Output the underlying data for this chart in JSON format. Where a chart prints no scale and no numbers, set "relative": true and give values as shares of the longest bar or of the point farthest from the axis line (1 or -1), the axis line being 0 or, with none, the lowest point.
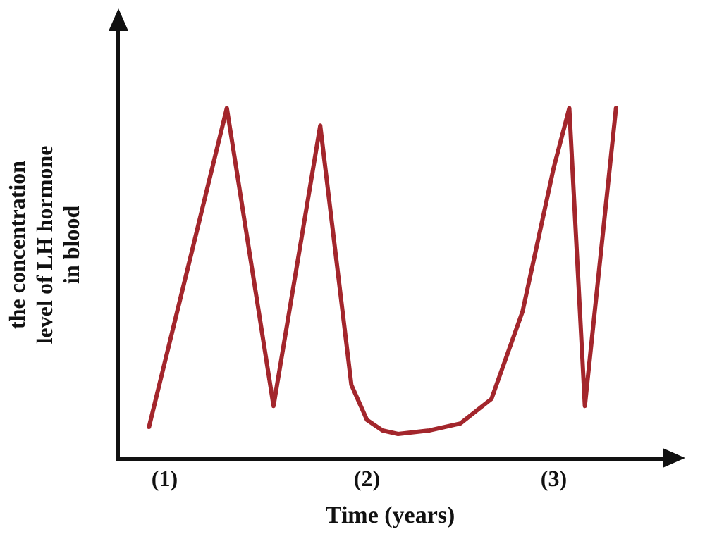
{
  "chart_data": {
    "type": "line",
    "relative": true,
    "xlabel": "Time (years)",
    "ylabel": "the concentration\nlevel of LH hormone\nin blood",
    "categories": [
      null,
      null,
      null,
      "(1)",
      null,
      null,
      null,
      null,
      null,
      null,
      null,
      null,
      null,
      null,
      null,
      null,
      "(2)",
      null,
      null,
      null,
      null,
      null,
      null,
      null,
      null,
      null,
      null,
      null,
      "(3)",
      null,
      null,
      null,
      null,
      null,
      null,
      null
    ],
    "series": [
      {
        "color": "#a3262c",
        "values": [
          null,
          null,
          0.09,
          null,
          null,
          null,
          null,
          1.0,
          null,
          null,
          0.15,
          null,
          null,
          0.95,
          null,
          0.21,
          0.11,
          0.08,
          0.07,
          null,
          0.08,
          null,
          0.1,
          null,
          0.17,
          null,
          0.42,
          null,
          0.83,
          1.0,
          0.15,
          null,
          1.0,
          null,
          null,
          null
        ]
      }
    ],
    "grid": false,
    "legend": false,
    "marker": "none",
    "line_style": "solid"
  }
}
